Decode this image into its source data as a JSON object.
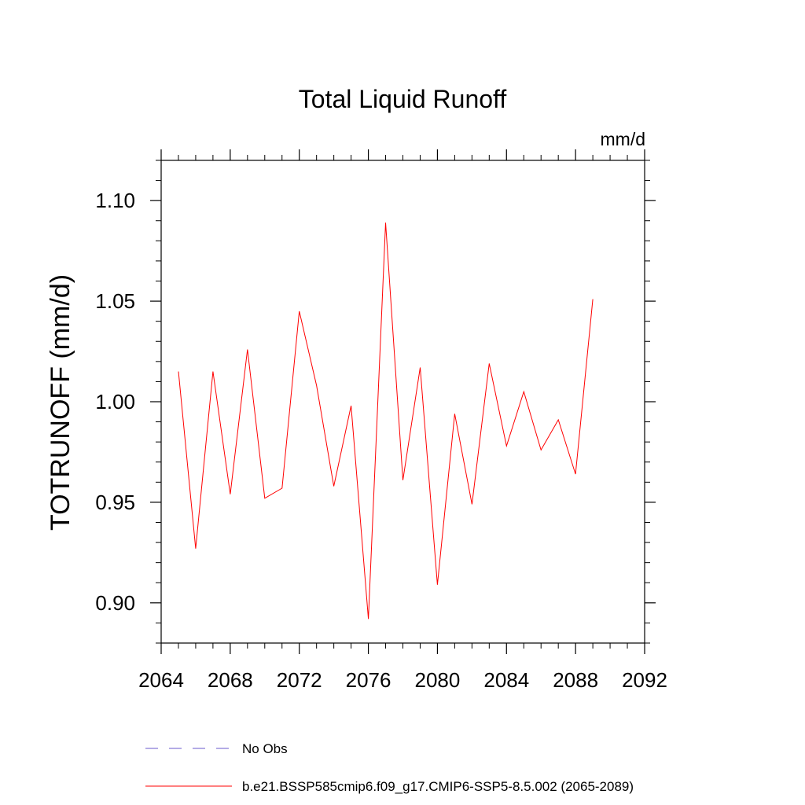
{
  "chart_data": {
    "type": "line",
    "title": "Total Liquid Runoff",
    "units_label": "mm/d",
    "ylabel": "TOTRUNOFF  (mm/d)",
    "xlabel": "",
    "xlim": [
      2064,
      2092
    ],
    "ylim": [
      0.88,
      1.12
    ],
    "x_ticks": [
      2064,
      2068,
      2072,
      2076,
      2080,
      2084,
      2088,
      2092
    ],
    "x_tick_labels": [
      "2064",
      "2068",
      "2072",
      "2076",
      "2080",
      "2084",
      "2088",
      "2092"
    ],
    "y_ticks": [
      0.9,
      0.95,
      1.0,
      1.05,
      1.1
    ],
    "y_tick_labels": [
      "0.90",
      "0.95",
      "1.00",
      "1.05",
      "1.10"
    ],
    "grid": false,
    "legend_position": "bottom-left",
    "series": [
      {
        "name": "b.e21.BSSP585cmip6.f09_g17.CMIP6-SSP5-8.5.002 (2065-2089)",
        "color": "#ff0000",
        "style": "solid",
        "x": [
          2065,
          2066,
          2067,
          2068,
          2069,
          2070,
          2071,
          2072,
          2073,
          2074,
          2075,
          2076,
          2077,
          2078,
          2079,
          2080,
          2081,
          2082,
          2083,
          2084,
          2085,
          2086,
          2087,
          2088,
          2089
        ],
        "y": [
          1.015,
          0.927,
          1.015,
          0.954,
          1.026,
          0.952,
          0.957,
          1.045,
          1.008,
          0.958,
          0.998,
          0.892,
          1.089,
          0.961,
          1.017,
          0.909,
          0.994,
          0.949,
          1.019,
          0.978,
          1.005,
          0.976,
          0.991,
          0.964,
          1.051
        ]
      },
      {
        "name": "No Obs",
        "color": "#6a5acd",
        "style": "dashed",
        "x": [],
        "y": []
      }
    ]
  }
}
